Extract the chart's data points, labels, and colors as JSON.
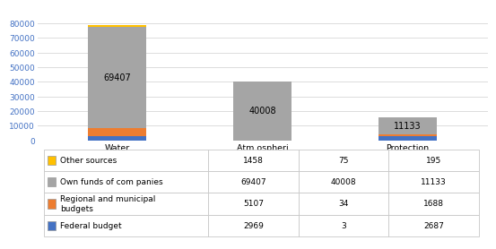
{
  "categories": [
    "Water\nresources\nprotection",
    "Atm ospheri\nc air\nprotection",
    "Protection\nof lands"
  ],
  "series_order": [
    "Federal budget",
    "Regional and municipal\nbudgets",
    "Own funds of companies",
    "Other sources"
  ],
  "series": {
    "Federal budget": [
      2969,
      3,
      2687
    ],
    "Regional and municipal\nbudgets": [
      5107,
      34,
      1688
    ],
    "Own funds of companies": [
      69407,
      40008,
      11133
    ],
    "Other sources": [
      1458,
      75,
      195
    ]
  },
  "colors": {
    "Federal budget": "#4472C4",
    "Regional and municipal\nbudgets": "#ED7D31",
    "Own funds of companies": "#A5A5A5",
    "Other sources": "#FFC000"
  },
  "bar_labels": [
    "69407",
    "40008",
    "11133"
  ],
  "ylim": [
    0,
    90000
  ],
  "yticks": [
    0,
    10000,
    20000,
    30000,
    40000,
    50000,
    60000,
    70000,
    80000
  ],
  "table_rows": [
    [
      "Other sources",
      "1458",
      "75",
      "195"
    ],
    [
      "Own funds of com panies",
      "69407",
      "40008",
      "11133"
    ],
    [
      "Regional and municipal\nbudgets",
      "5107",
      "34",
      "1688"
    ],
    [
      "Federal budget",
      "2969",
      "3",
      "2687"
    ]
  ],
  "table_row_colors": [
    "#FFC000",
    "#A5A5A5",
    "#ED7D31",
    "#4472C4"
  ],
  "background_color": "#FFFFFF",
  "grid_color": "#DCDCDC",
  "border_color": "#C8C8C8"
}
